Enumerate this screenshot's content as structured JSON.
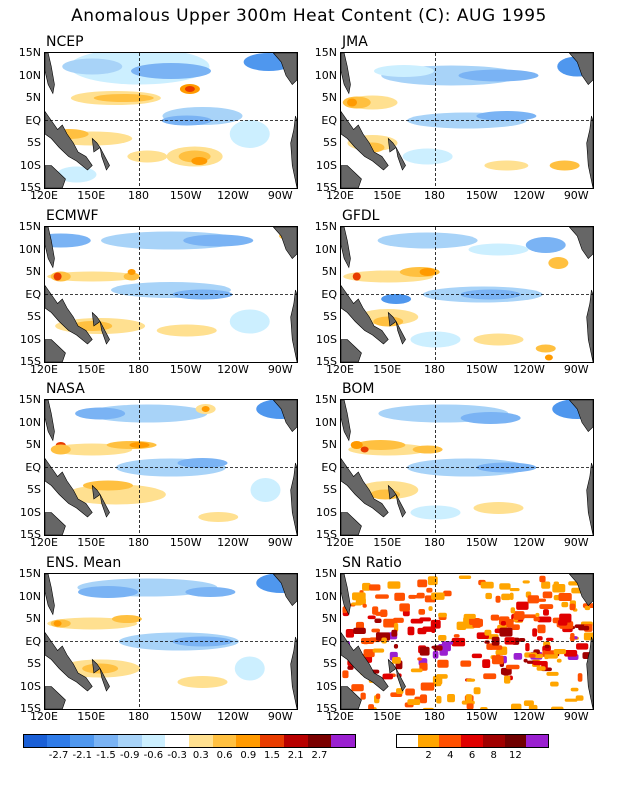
{
  "title": "Anomalous Upper 300m Heat Content (C): AUG 1995",
  "panels": [
    {
      "name": "NCEP"
    },
    {
      "name": "JMA"
    },
    {
      "name": "ECMWF"
    },
    {
      "name": "GFDL"
    },
    {
      "name": "NASA"
    },
    {
      "name": "BOM"
    },
    {
      "name": "ENS. Mean"
    },
    {
      "name": "SN Ratio"
    }
  ],
  "lat_labels": [
    "15N",
    "10N",
    "5N",
    "EQ",
    "5S",
    "10S",
    "15S"
  ],
  "lon_labels": [
    "120E",
    "150E",
    "180",
    "150W",
    "120W",
    "90W"
  ],
  "colorbar_anom": {
    "colors": [
      "#1a5fd6",
      "#2f7be8",
      "#4f97ee",
      "#7ab3f4",
      "#a8d3f8",
      "#ccefff",
      "#ffffff",
      "#ffe090",
      "#ffc040",
      "#ff9a00",
      "#e83c00",
      "#b80000",
      "#7a0000",
      "#9a20d0"
    ],
    "labels": [
      "-2.7",
      "-2.1",
      "-1.5",
      "-0.9",
      "-0.6",
      "-0.3",
      "0.3",
      "0.6",
      "0.9",
      "1.5",
      "2.1",
      "2.7"
    ]
  },
  "colorbar_sn": {
    "colors": [
      "#ffffff",
      "#ffa500",
      "#ff5000",
      "#e00000",
      "#a00000",
      "#700000",
      "#9a20d0"
    ],
    "labels": [
      "2",
      "4",
      "6",
      "8",
      "12"
    ]
  },
  "chart_data": {
    "type": "heatmap",
    "title": "Anomalous Upper 300m Heat Content (C): AUG 1995",
    "x_range": [
      "120E",
      "80W"
    ],
    "y_range": [
      "15S",
      "15N"
    ],
    "panels": [
      "NCEP",
      "JMA",
      "ECMWF",
      "GFDL",
      "NASA",
      "BOM",
      "ENS. Mean",
      "SN Ratio"
    ],
    "anomaly_levels": [
      -2.7,
      -2.1,
      -1.5,
      -0.9,
      -0.6,
      -0.3,
      0.3,
      0.6,
      0.9,
      1.5,
      2.1,
      2.7
    ],
    "sn_levels": [
      2,
      4,
      6,
      8,
      12
    ]
  }
}
